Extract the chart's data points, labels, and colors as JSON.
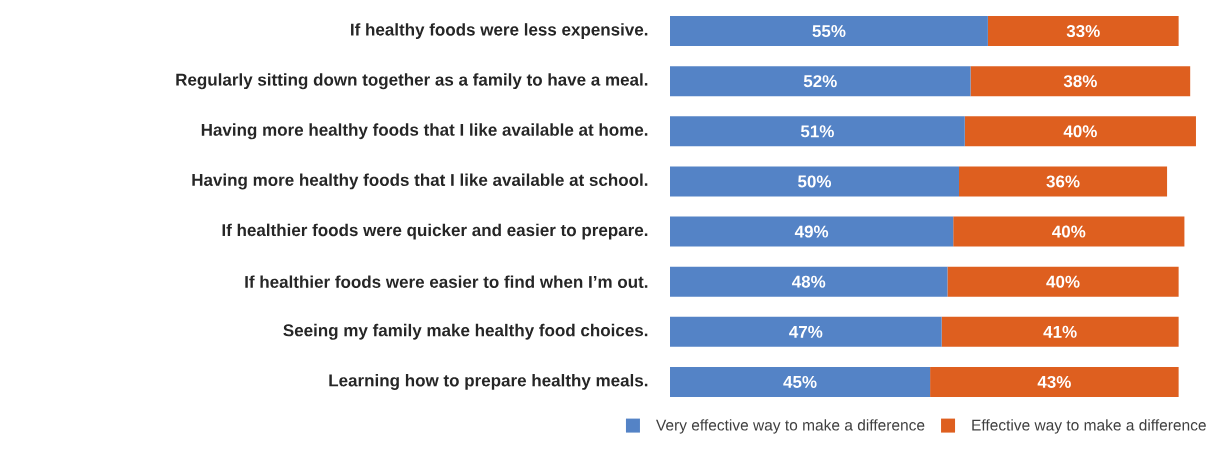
{
  "chart_data": {
    "type": "bar",
    "orientation": "horizontal",
    "stacked": true,
    "legend": "bottom right",
    "categories": [
      "If healthy foods were less expensive.",
      "Regularly sitting down together as a family to have a meal.",
      "Having more healthy foods that I like available at home.",
      "Having more healthy foods that I like available at school.",
      "If healthier foods were quicker and easier to prepare.",
      "If healthier foods were easier to find when I’m out.",
      "Seeing my family make healthy food choices.",
      "Learning how to prepare healthy meals."
    ],
    "series": [
      {
        "name": "Very effective way to make a difference",
        "color": "#5483c6",
        "values": [
          55,
          52,
          51,
          50,
          49,
          48,
          47,
          45
        ],
        "value_labels": [
          "55%",
          "52%",
          "51%",
          "50%",
          "49%",
          "48%",
          "47%",
          "45%"
        ]
      },
      {
        "name": "Effective way to make a difference",
        "color": "#de5f1f",
        "values": [
          33,
          38,
          40,
          36,
          40,
          40,
          41,
          43
        ],
        "value_labels": [
          "33%",
          "38%",
          "40%",
          "36%",
          "40%",
          "40%",
          "41%",
          "43%"
        ]
      }
    ]
  }
}
